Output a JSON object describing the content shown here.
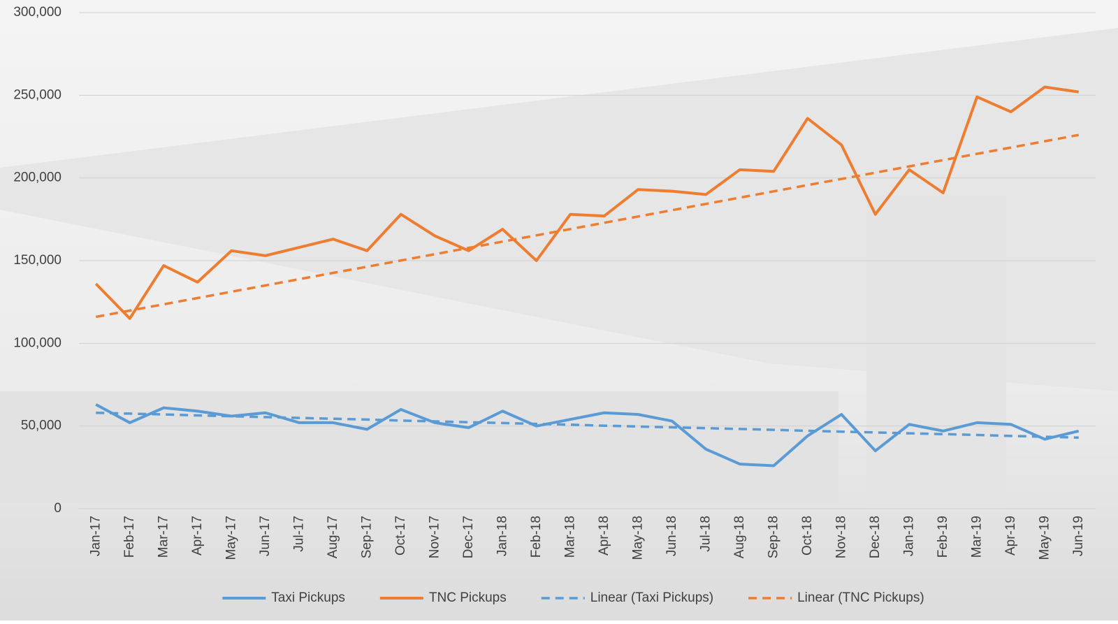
{
  "chart_data": {
    "type": "line",
    "categories": [
      "Jan-17",
      "Feb-17",
      "Mar-17",
      "Apr-17",
      "May-17",
      "Jun-17",
      "Jul-17",
      "Aug-17",
      "Sep-17",
      "Oct-17",
      "Nov-17",
      "Dec-17",
      "Jan-18",
      "Feb-18",
      "Mar-18",
      "Apr-18",
      "May-18",
      "Jun-18",
      "Jul-18",
      "Aug-18",
      "Sep-18",
      "Oct-18",
      "Nov-18",
      "Dec-18",
      "Jan-19",
      "Feb-19",
      "Mar-19",
      "Apr-19",
      "May-19",
      "Jun-19"
    ],
    "series": [
      {
        "name": "Taxi Pickups",
        "color": "#5b9bd5",
        "line_style": "solid",
        "values": [
          63000,
          52000,
          61000,
          59000,
          56000,
          58000,
          52000,
          52000,
          48000,
          60000,
          52000,
          49000,
          59000,
          50000,
          54000,
          58000,
          57000,
          53000,
          36000,
          27000,
          26000,
          44000,
          57000,
          35000,
          51000,
          47000,
          52000,
          51000,
          42000,
          47000
        ]
      },
      {
        "name": "TNC Pickups",
        "color": "#ed7d31",
        "line_style": "solid",
        "values": [
          136000,
          115000,
          147000,
          137000,
          156000,
          153000,
          158000,
          163000,
          156000,
          178000,
          165000,
          156000,
          169000,
          150000,
          178000,
          177000,
          193000,
          192000,
          190000,
          205000,
          204000,
          236000,
          220000,
          178000,
          205000,
          191000,
          249000,
          240000,
          255000,
          252000
        ]
      },
      {
        "name": "Linear (Taxi Pickups)",
        "color": "#5b9bd5",
        "line_style": "dashed",
        "values": [
          58000,
          57500,
          57000,
          56400,
          55900,
          55400,
          54900,
          54400,
          53900,
          53300,
          52800,
          52300,
          51800,
          51300,
          50800,
          50200,
          49700,
          49200,
          48700,
          48200,
          47700,
          47100,
          46600,
          46100,
          45600,
          45100,
          44600,
          44000,
          43500,
          43000
        ]
      },
      {
        "name": "Linear (TNC Pickups)",
        "color": "#ed7d31",
        "line_style": "dashed",
        "values": [
          116000,
          119800,
          123600,
          127400,
          131200,
          135000,
          138800,
          142600,
          146300,
          150100,
          153900,
          157700,
          161500,
          165300,
          169100,
          172900,
          176700,
          180500,
          184300,
          188100,
          191900,
          195700,
          199400,
          203200,
          207000,
          210800,
          214600,
          218400,
          222200,
          226000
        ]
      }
    ],
    "ylim": [
      0,
      300000
    ],
    "yticks": [
      {
        "value": 0,
        "label": "0"
      },
      {
        "value": 50000,
        "label": "50,000"
      },
      {
        "value": 100000,
        "label": "100,000"
      },
      {
        "value": 150000,
        "label": "150,000"
      },
      {
        "value": 200000,
        "label": "200,000"
      },
      {
        "value": 250000,
        "label": "250,000"
      },
      {
        "value": 300000,
        "label": "300,000"
      }
    ],
    "grid": true,
    "legend": "bottom"
  }
}
